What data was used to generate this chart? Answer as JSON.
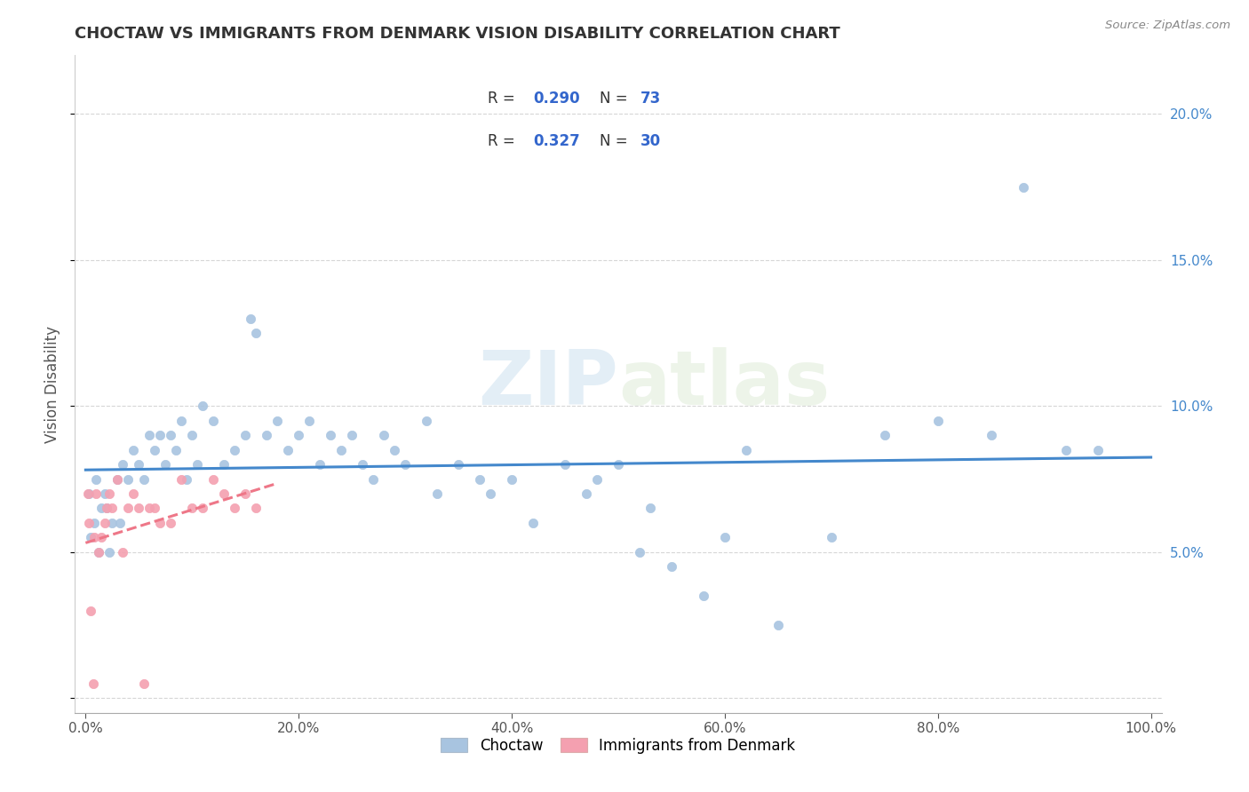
{
  "title": "CHOCTAW VS IMMIGRANTS FROM DENMARK VISION DISABILITY CORRELATION CHART",
  "source": "Source: ZipAtlas.com",
  "ylabel": "Vision Disability",
  "xlim": [
    0,
    100
  ],
  "ylim": [
    0,
    22
  ],
  "xtick_positions": [
    0,
    20,
    40,
    60,
    80,
    100
  ],
  "xticklabels": [
    "0.0%",
    "20.0%",
    "40.0%",
    "60.0%",
    "80.0%",
    "100.0%"
  ],
  "ytick_positions": [
    0,
    5,
    10,
    15,
    20
  ],
  "yticklabels": [
    "",
    "5.0%",
    "10.0%",
    "15.0%",
    "20.0%"
  ],
  "legend1_R": "0.290",
  "legend1_N": "73",
  "legend2_R": "0.327",
  "legend2_N": "30",
  "blue_color": "#a8c4e0",
  "pink_color": "#f4a0b0",
  "blue_line_color": "#4488cc",
  "pink_line_color": "#ee7788",
  "grid_color": "#cccccc",
  "watermark_color": "#ddeeff",
  "choctaw_x": [
    0.3,
    0.5,
    0.8,
    1.0,
    1.2,
    1.5,
    1.8,
    2.0,
    2.2,
    2.5,
    3.0,
    3.2,
    3.5,
    4.0,
    4.5,
    5.0,
    5.5,
    6.0,
    6.5,
    7.0,
    7.5,
    8.0,
    8.5,
    9.0,
    9.5,
    10.0,
    10.5,
    11.0,
    12.0,
    13.0,
    14.0,
    15.0,
    15.5,
    16.0,
    17.0,
    18.0,
    19.0,
    20.0,
    21.0,
    22.0,
    23.0,
    24.0,
    25.0,
    26.0,
    27.0,
    28.0,
    29.0,
    30.0,
    32.0,
    33.0,
    35.0,
    37.0,
    38.0,
    40.0,
    42.0,
    45.0,
    47.0,
    48.0,
    50.0,
    52.0,
    53.0,
    55.0,
    58.0,
    60.0,
    62.0,
    65.0,
    70.0,
    75.0,
    80.0,
    85.0,
    88.0,
    92.0,
    95.0
  ],
  "choctaw_y": [
    7.0,
    5.5,
    6.0,
    7.5,
    5.0,
    6.5,
    7.0,
    6.5,
    5.0,
    6.0,
    7.5,
    6.0,
    8.0,
    7.5,
    8.5,
    8.0,
    7.5,
    9.0,
    8.5,
    9.0,
    8.0,
    9.0,
    8.5,
    9.5,
    7.5,
    9.0,
    8.0,
    10.0,
    9.5,
    8.0,
    8.5,
    9.0,
    13.0,
    12.5,
    9.0,
    9.5,
    8.5,
    9.0,
    9.5,
    8.0,
    9.0,
    8.5,
    9.0,
    8.0,
    7.5,
    9.0,
    8.5,
    8.0,
    9.5,
    7.0,
    8.0,
    7.5,
    7.0,
    7.5,
    6.0,
    8.0,
    7.0,
    7.5,
    8.0,
    5.0,
    6.5,
    4.5,
    3.5,
    5.5,
    8.5,
    2.5,
    5.5,
    9.0,
    9.5,
    9.0,
    17.5,
    8.5,
    8.5
  ],
  "denmark_x": [
    0.2,
    0.3,
    0.5,
    0.7,
    0.8,
    1.0,
    1.2,
    1.5,
    1.8,
    2.0,
    2.2,
    2.5,
    3.0,
    3.5,
    4.0,
    4.5,
    5.0,
    5.5,
    6.0,
    6.5,
    7.0,
    8.0,
    9.0,
    10.0,
    11.0,
    12.0,
    13.0,
    14.0,
    15.0,
    16.0
  ],
  "denmark_y": [
    7.0,
    6.0,
    3.0,
    0.5,
    5.5,
    7.0,
    5.0,
    5.5,
    6.0,
    6.5,
    7.0,
    6.5,
    7.5,
    5.0,
    6.5,
    7.0,
    6.5,
    0.5,
    6.5,
    6.5,
    6.0,
    6.0,
    7.5,
    6.5,
    6.5,
    7.5,
    7.0,
    6.5,
    7.0,
    6.5
  ]
}
